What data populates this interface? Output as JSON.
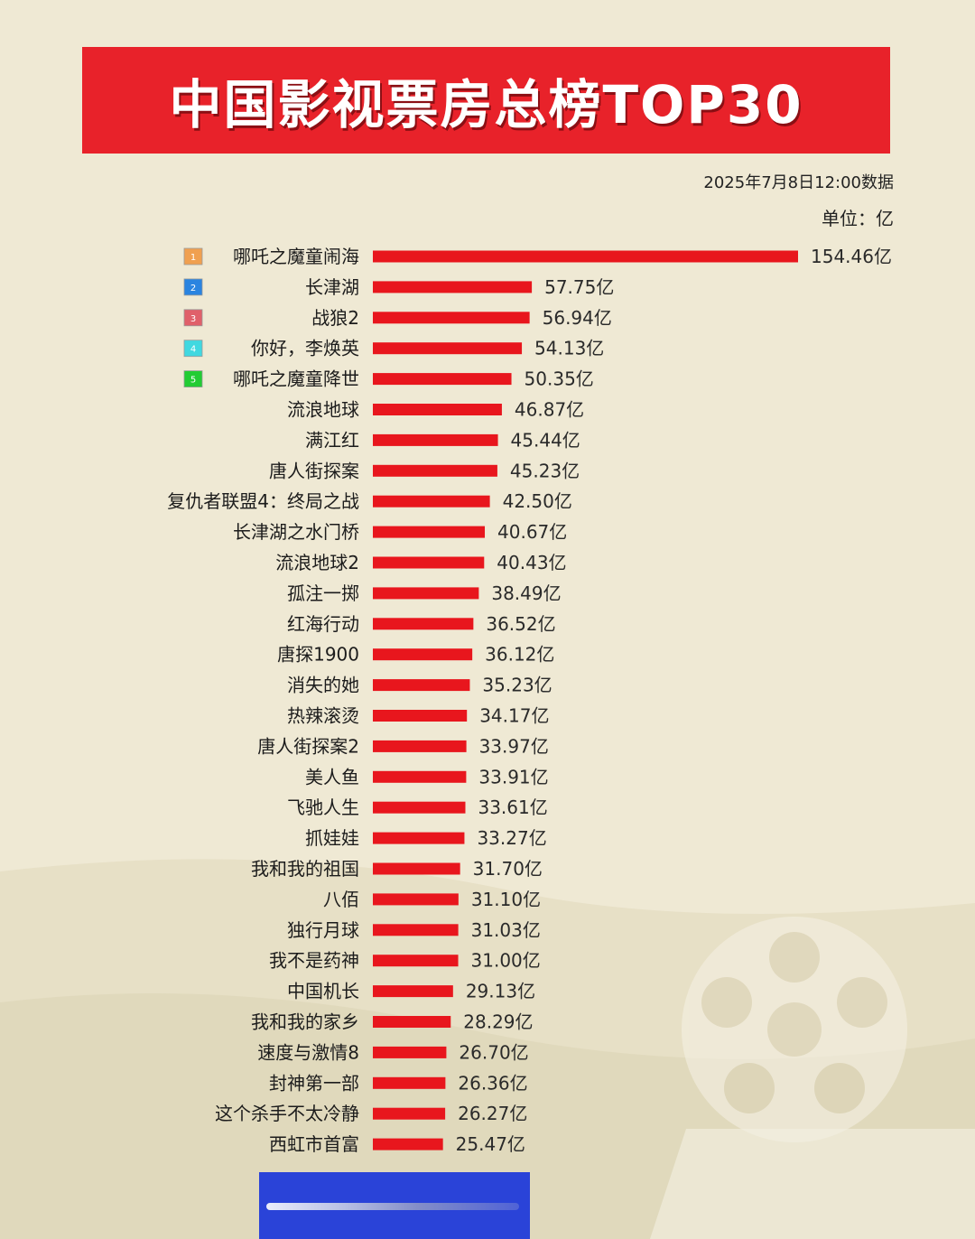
{
  "header": {
    "title": "中国影视票房总榜TOP30",
    "date_note": "2025年7月8日12:00数据",
    "unit_note": "单位：亿"
  },
  "colors": {
    "banner": "#e8222a",
    "bar": "#e8161d",
    "background": "#efe9d4",
    "rank_badges": [
      "#f0a050",
      "#2a84e0",
      "#e0606a",
      "#40d8e0",
      "#22cc33"
    ]
  },
  "chart_data": {
    "type": "bar",
    "orientation": "horizontal",
    "title": "中国影视票房总榜TOP30",
    "unit": "亿",
    "value_suffix": "亿",
    "categories": [
      "哪吒之魔童闹海",
      "长津湖",
      "战狼2",
      "你好，李焕英",
      "哪吒之魔童降世",
      "流浪地球",
      "满江红",
      "唐人街探案",
      "复仇者联盟4：终局之战",
      "长津湖之水门桥",
      "流浪地球2",
      "孤注一掷",
      "红海行动",
      "唐探1900",
      "消失的她",
      "热辣滚烫",
      "唐人街探案2",
      "美人鱼",
      "飞驰人生",
      "抓娃娃",
      "我和我的祖国",
      "八佰",
      "独行月球",
      "我不是药神",
      "中国机长",
      "我和我的家乡",
      "速度与激情8",
      "封神第一部",
      "这个杀手不太冷静",
      "西虹市首富"
    ],
    "values": [
      154.46,
      57.75,
      56.94,
      54.13,
      50.35,
      46.87,
      45.44,
      45.23,
      42.5,
      40.67,
      40.43,
      38.49,
      36.52,
      36.12,
      35.23,
      34.17,
      33.97,
      33.91,
      33.61,
      33.27,
      31.7,
      31.1,
      31.03,
      31.0,
      29.13,
      28.29,
      26.7,
      26.36,
      26.27,
      25.47
    ],
    "value_labels": [
      "154.46亿",
      "57.75亿",
      "56.94亿",
      "54.13亿",
      "50.35亿",
      "46.87亿",
      "45.44亿",
      "45.23亿",
      "42.50亿",
      "40.67亿",
      "40.43亿",
      "38.49亿",
      "36.52亿",
      "36.12亿",
      "35.23亿",
      "34.17亿",
      "33.97亿",
      "33.91亿",
      "33.61亿",
      "33.27亿",
      "31.70亿",
      "31.10亿",
      "31.03亿",
      "31.00亿",
      "29.13亿",
      "28.29亿",
      "26.70亿",
      "26.36亿",
      "26.27亿",
      "25.47亿"
    ],
    "rank_badges": [
      "1",
      "2",
      "3",
      "4",
      "5"
    ],
    "legend": "none",
    "grid": false
  }
}
